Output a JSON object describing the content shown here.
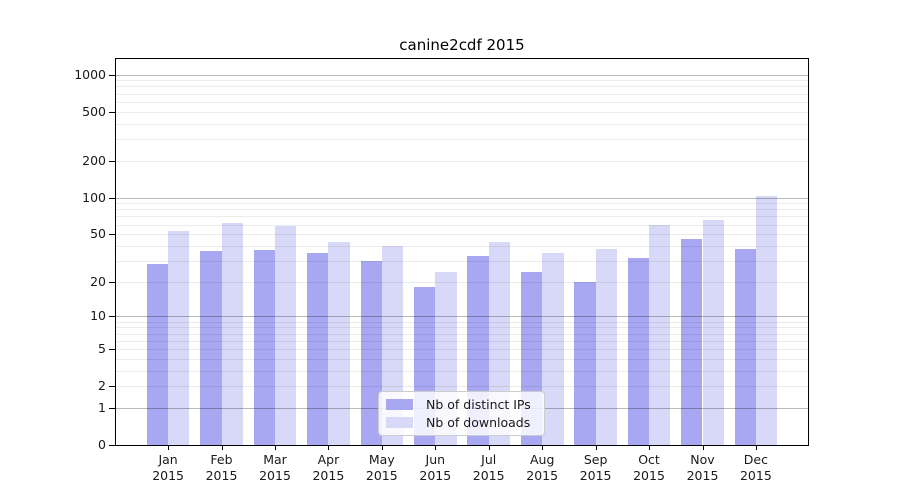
{
  "title": "canine2cdf 2015",
  "chart_data": {
    "type": "bar",
    "title": "canine2cdf 2015",
    "categories": [
      "Jan",
      "Feb",
      "Mar",
      "Apr",
      "May",
      "Jun",
      "Jul",
      "Aug",
      "Sep",
      "Oct",
      "Nov",
      "Dec"
    ],
    "category_year": "2015",
    "series": [
      {
        "name": "Nb of distinct IPs",
        "color": "#a7a7f2",
        "values": [
          28,
          36,
          37,
          35,
          30,
          18,
          33,
          24,
          20,
          32,
          46,
          38
        ]
      },
      {
        "name": "Nb of downloads",
        "color": "#d8d8f8",
        "values": [
          53,
          62,
          58,
          43,
          40,
          24,
          43,
          35,
          38,
          60,
          66,
          102
        ]
      }
    ],
    "xlabel": "",
    "ylabel": "",
    "yticks": [
      0,
      1,
      2,
      5,
      10,
      20,
      50,
      100,
      200,
      500,
      1000
    ],
    "yscale": "log(1+v)",
    "ylim": [
      0,
      1335
    ],
    "grid": true,
    "grid_over_bars": true,
    "legend_position": "inside-bottom-center"
  },
  "colors": {
    "bar_distinct_ips": "#a7a7f2",
    "bar_downloads": "#d8d8f8",
    "grid_major": "#b9b9b9",
    "grid_minor": "#ebebeb",
    "axis": "#000000",
    "text": "#1a1a1a",
    "background": "#ffffff"
  }
}
